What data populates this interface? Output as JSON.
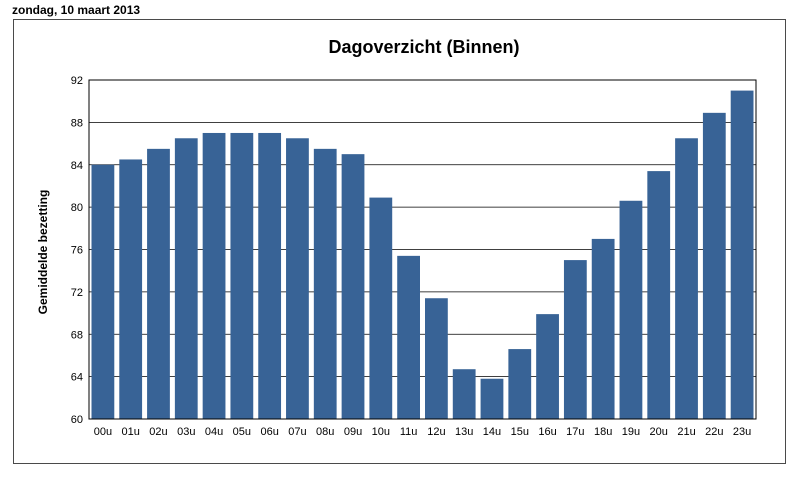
{
  "date_text": "zondag, 10 maart 2013",
  "chart_data": {
    "type": "bar",
    "title": "Dagoverzicht (Binnen)",
    "xlabel": "",
    "ylabel": "Gemiddelde bezetting",
    "ylim": [
      60,
      92
    ],
    "yticks": [
      60,
      64,
      68,
      72,
      76,
      80,
      84,
      88,
      92
    ],
    "grid": true,
    "bar_color": "#386396",
    "categories": [
      "00u",
      "01u",
      "02u",
      "03u",
      "04u",
      "05u",
      "06u",
      "07u",
      "08u",
      "09u",
      "10u",
      "11u",
      "12u",
      "13u",
      "14u",
      "15u",
      "16u",
      "17u",
      "18u",
      "19u",
      "20u",
      "21u",
      "22u",
      "23u"
    ],
    "values": [
      84.0,
      84.5,
      85.5,
      86.5,
      87.0,
      87.0,
      87.0,
      86.5,
      85.5,
      85.0,
      80.9,
      75.4,
      71.4,
      64.7,
      63.8,
      66.6,
      69.9,
      75.0,
      77.0,
      80.6,
      83.4,
      86.5,
      88.9,
      91.0
    ]
  }
}
